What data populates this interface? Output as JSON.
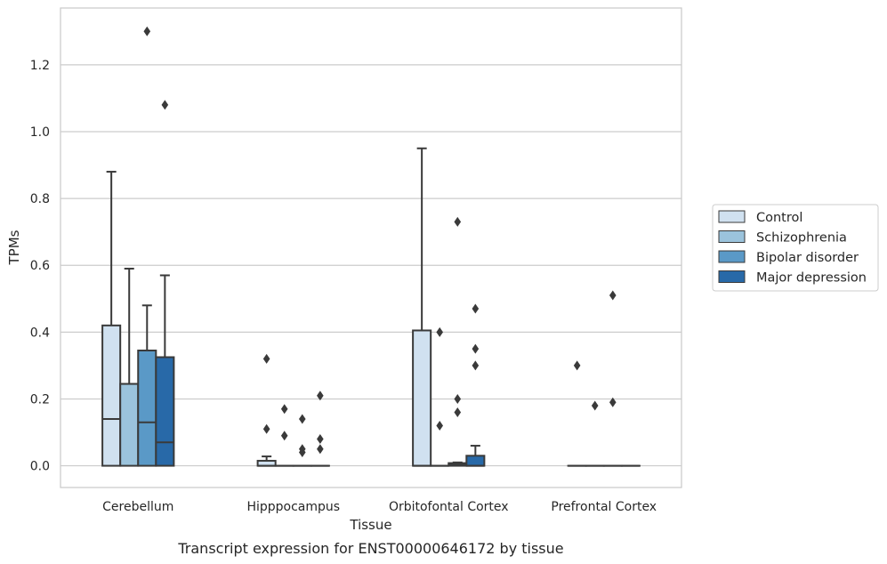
{
  "caption": "Transcript expression for ENST00000646172 by tissue",
  "chart_data": {
    "type": "box",
    "xlabel": "Tissue",
    "ylabel": "TPMs",
    "ylim": [
      -0.065,
      1.37
    ],
    "yticks": [
      0.0,
      0.2,
      0.4,
      0.6,
      0.8,
      1.0,
      1.2
    ],
    "ytick_labels": [
      "0.0",
      "0.2",
      "0.4",
      "0.6",
      "0.8",
      "1.0",
      "1.2"
    ],
    "grid": "horizontal",
    "legend_position": "right-center",
    "categories": [
      "Cerebellum",
      "Hipppocampus",
      "Orbitofontal Cortex",
      "Prefrontal Cortex"
    ],
    "series": [
      {
        "name": "Control",
        "color": "#d0e1f0",
        "boxes": [
          {
            "q1": 0.0,
            "median": 0.14,
            "q3": 0.42,
            "whisker_low": 0.0,
            "whisker_high": 0.88,
            "outliers": []
          },
          {
            "q1": 0.0,
            "median": 0.0,
            "q3": 0.015,
            "whisker_low": 0.0,
            "whisker_high": 0.028,
            "outliers": [
              0.11,
              0.32
            ]
          },
          {
            "q1": 0.0,
            "median": 0.0,
            "q3": 0.405,
            "whisker_low": 0.0,
            "whisker_high": 0.95,
            "outliers": []
          },
          {
            "q1": 0.0,
            "median": 0.0,
            "q3": 0.0,
            "whisker_low": 0.0,
            "whisker_high": 0.0,
            "outliers": [
              0.3
            ]
          }
        ]
      },
      {
        "name": "Schizophrenia",
        "color": "#9bc3dc",
        "boxes": [
          {
            "q1": 0.0,
            "median": 0.245,
            "q3": 0.245,
            "whisker_low": 0.0,
            "whisker_high": 0.59,
            "outliers": []
          },
          {
            "q1": 0.0,
            "median": 0.0,
            "q3": 0.0,
            "whisker_low": 0.0,
            "whisker_high": 0.0,
            "outliers": [
              0.09,
              0.17
            ]
          },
          {
            "q1": 0.0,
            "median": 0.0,
            "q3": 0.0,
            "whisker_low": 0.0,
            "whisker_high": 0.0,
            "outliers": [
              0.12,
              0.4
            ]
          },
          {
            "q1": 0.0,
            "median": 0.0,
            "q3": 0.0,
            "whisker_low": 0.0,
            "whisker_high": 0.0,
            "outliers": [
              0.18
            ]
          }
        ]
      },
      {
        "name": "Bipolar disorder",
        "color": "#5a99c7",
        "boxes": [
          {
            "q1": 0.0,
            "median": 0.13,
            "q3": 0.345,
            "whisker_low": 0.0,
            "whisker_high": 0.48,
            "outliers": [
              1.3
            ]
          },
          {
            "q1": 0.0,
            "median": 0.0,
            "q3": 0.0,
            "whisker_low": 0.0,
            "whisker_high": 0.0,
            "outliers": [
              0.04,
              0.05,
              0.14
            ]
          },
          {
            "q1": 0.0,
            "median": 0.005,
            "q3": 0.008,
            "whisker_low": 0.0,
            "whisker_high": 0.01,
            "outliers": [
              0.16,
              0.2,
              0.73
            ]
          },
          {
            "q1": 0.0,
            "median": 0.0,
            "q3": 0.0,
            "whisker_low": 0.0,
            "whisker_high": 0.0,
            "outliers": [
              0.51,
              0.19
            ]
          }
        ]
      },
      {
        "name": "Major depression",
        "color": "#2869a8",
        "boxes": [
          {
            "q1": 0.0,
            "median": 0.07,
            "q3": 0.325,
            "whisker_low": 0.0,
            "whisker_high": 0.57,
            "outliers": [
              1.08
            ]
          },
          {
            "q1": 0.0,
            "median": 0.0,
            "q3": 0.0,
            "whisker_low": 0.0,
            "whisker_high": 0.0,
            "outliers": [
              0.05,
              0.08,
              0.21
            ]
          },
          {
            "q1": 0.0,
            "median": 0.0,
            "q3": 0.03,
            "whisker_low": 0.0,
            "whisker_high": 0.06,
            "outliers": [
              0.3,
              0.35,
              0.47
            ]
          },
          {
            "q1": 0.0,
            "median": 0.0,
            "q3": 0.0,
            "whisker_low": 0.0,
            "whisker_high": 0.0,
            "outliers": []
          }
        ]
      }
    ]
  }
}
